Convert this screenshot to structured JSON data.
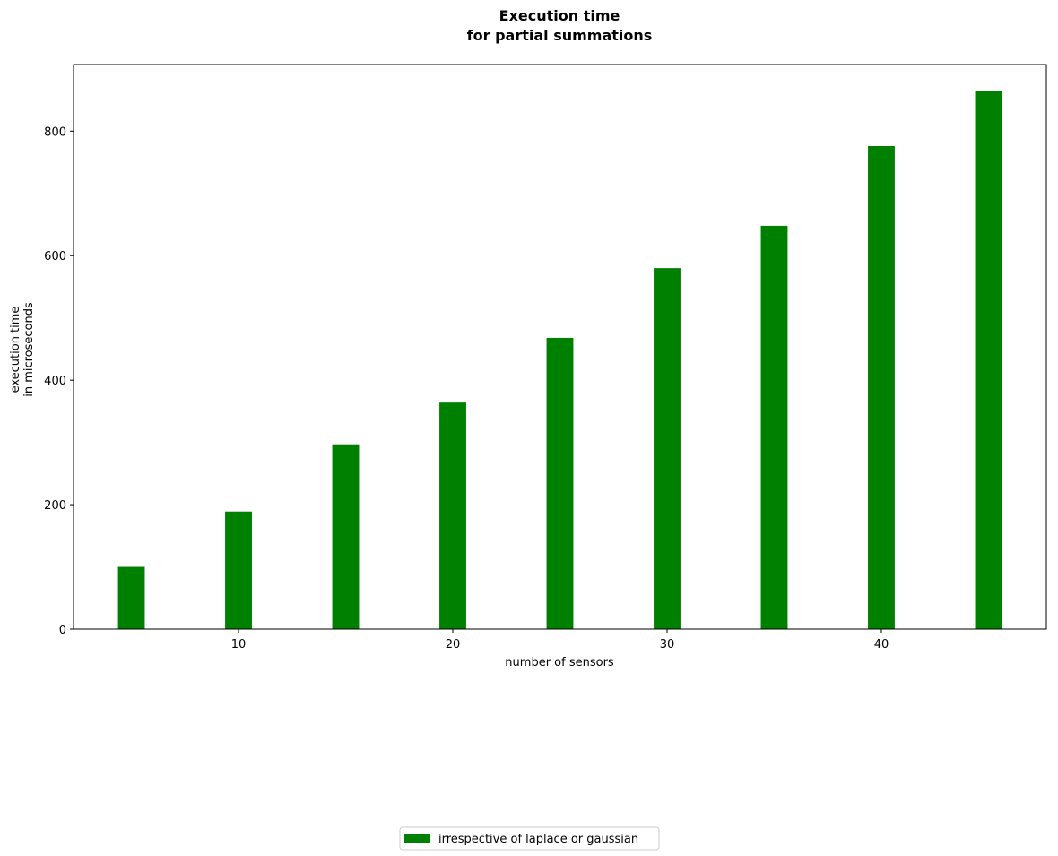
{
  "chart_data": {
    "type": "bar",
    "title_lines": [
      "Execution time",
      "for partial summations"
    ],
    "xlabel": "number of sensors",
    "ylabel_lines": [
      "execution time",
      "in microseconds"
    ],
    "x": [
      5,
      10,
      15,
      20,
      25,
      30,
      35,
      40,
      45
    ],
    "series": [
      {
        "name": "irrespective of laplace or gaussian",
        "color": "#008000",
        "values": [
          100,
          189,
          297,
          364,
          468,
          580,
          648,
          776,
          864
        ]
      }
    ],
    "xlim": [
      2.3,
      47.7
    ],
    "ylim": [
      0,
      907
    ],
    "xticks": [
      10,
      20,
      30,
      40
    ],
    "yticks": [
      0,
      200,
      400,
      600,
      800
    ],
    "bar_width": 1.25,
    "grid": false,
    "legend_position": "bottom-center"
  }
}
